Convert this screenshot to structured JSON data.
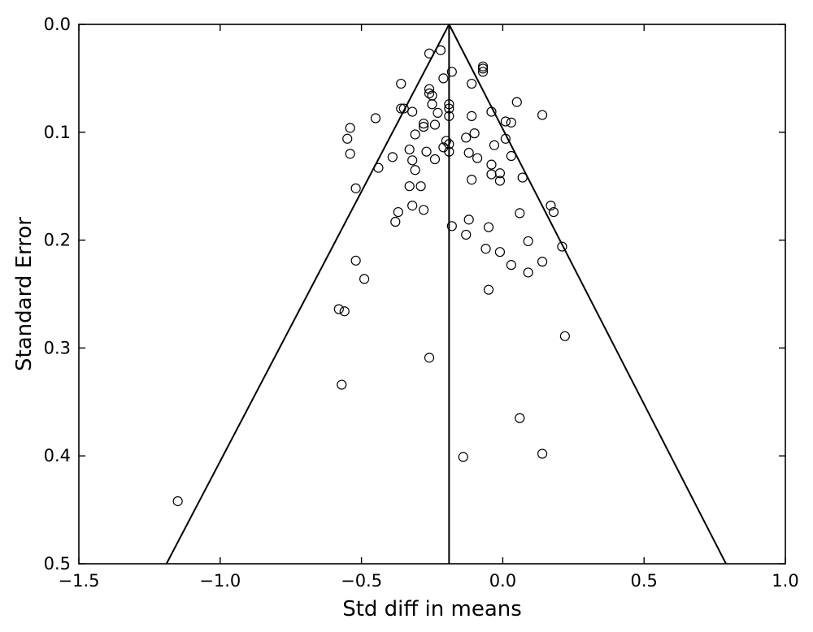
{
  "chart_data": {
    "type": "scatter",
    "subtype": "funnel-plot",
    "title": "",
    "xlabel": "Std diff in means",
    "ylabel": "Standard Error",
    "xlim": [
      -1.5,
      1.0
    ],
    "ylim": [
      0.0,
      0.5
    ],
    "y_inverted": true,
    "grid": false,
    "legend": "none",
    "x_ticks": [
      -1.5,
      -1.0,
      -0.5,
      0.0,
      0.5,
      1.0
    ],
    "x_tick_labels": [
      "−1.5",
      "−1.0",
      "−0.5",
      "0.0",
      "0.5",
      "1.0"
    ],
    "y_ticks": [
      0.0,
      0.1,
      0.2,
      0.3,
      0.4,
      0.5
    ],
    "y_tick_labels": [
      "0.0",
      "0.1",
      "0.2",
      "0.3",
      "0.4",
      "0.5"
    ],
    "funnel": {
      "center": -0.19,
      "apex_se": 0.0,
      "base_se": 0.5,
      "base_left": -1.19,
      "base_right": 0.79
    },
    "marker": {
      "shape": "open-circle",
      "color": "#000000"
    },
    "series": [
      {
        "points": [
          [
            -1.15,
            0.442
          ],
          [
            -0.57,
            0.334
          ],
          [
            -0.58,
            0.264
          ],
          [
            -0.56,
            0.266
          ],
          [
            -0.49,
            0.236
          ],
          [
            -0.52,
            0.219
          ],
          [
            -0.52,
            0.152
          ],
          [
            -0.55,
            0.106
          ],
          [
            -0.54,
            0.096
          ],
          [
            -0.54,
            0.12
          ],
          [
            -0.45,
            0.087
          ],
          [
            -0.44,
            0.133
          ],
          [
            -0.36,
            0.055
          ],
          [
            -0.36,
            0.078
          ],
          [
            -0.35,
            0.078
          ],
          [
            -0.32,
            0.081
          ],
          [
            -0.31,
            0.102
          ],
          [
            -0.39,
            0.123
          ],
          [
            -0.33,
            0.116
          ],
          [
            -0.32,
            0.126
          ],
          [
            -0.31,
            0.135
          ],
          [
            -0.33,
            0.15
          ],
          [
            -0.29,
            0.15
          ],
          [
            -0.37,
            0.174
          ],
          [
            -0.38,
            0.183
          ],
          [
            -0.32,
            0.168
          ],
          [
            -0.28,
            0.172
          ],
          [
            -0.26,
            0.309
          ],
          [
            -0.26,
            0.027
          ],
          [
            -0.22,
            0.024
          ],
          [
            -0.26,
            0.06
          ],
          [
            -0.26,
            0.064
          ],
          [
            -0.25,
            0.066
          ],
          [
            -0.25,
            0.074
          ],
          [
            -0.21,
            0.05
          ],
          [
            -0.18,
            0.044
          ],
          [
            -0.19,
            0.074
          ],
          [
            -0.19,
            0.078
          ],
          [
            -0.19,
            0.085
          ],
          [
            -0.23,
            0.082
          ],
          [
            -0.28,
            0.092
          ],
          [
            -0.28,
            0.095
          ],
          [
            -0.24,
            0.093
          ],
          [
            -0.2,
            0.108
          ],
          [
            -0.21,
            0.114
          ],
          [
            -0.19,
            0.111
          ],
          [
            -0.19,
            0.118
          ],
          [
            -0.27,
            0.118
          ],
          [
            -0.24,
            0.125
          ],
          [
            -0.18,
            0.187
          ],
          [
            -0.14,
            0.401
          ],
          [
            -0.13,
            0.105
          ],
          [
            -0.11,
            0.055
          ],
          [
            -0.11,
            0.085
          ],
          [
            -0.1,
            0.101
          ],
          [
            -0.12,
            0.119
          ],
          [
            -0.09,
            0.124
          ],
          [
            -0.11,
            0.144
          ],
          [
            -0.12,
            0.181
          ],
          [
            -0.13,
            0.195
          ],
          [
            -0.07,
            0.044
          ],
          [
            -0.07,
            0.039
          ],
          [
            -0.07,
            0.041
          ],
          [
            -0.04,
            0.081
          ],
          [
            -0.03,
            0.112
          ],
          [
            -0.04,
            0.13
          ],
          [
            -0.04,
            0.139
          ],
          [
            -0.01,
            0.138
          ],
          [
            -0.01,
            0.145
          ],
          [
            -0.06,
            0.208
          ],
          [
            -0.05,
            0.188
          ],
          [
            -0.01,
            0.211
          ],
          [
            -0.05,
            0.246
          ],
          [
            0.01,
            0.09
          ],
          [
            0.03,
            0.091
          ],
          [
            0.01,
            0.106
          ],
          [
            0.03,
            0.122
          ],
          [
            0.05,
            0.072
          ],
          [
            0.07,
            0.142
          ],
          [
            0.06,
            0.175
          ],
          [
            0.03,
            0.223
          ],
          [
            0.09,
            0.201
          ],
          [
            0.09,
            0.23
          ],
          [
            0.14,
            0.084
          ],
          [
            0.14,
            0.22
          ],
          [
            0.17,
            0.168
          ],
          [
            0.18,
            0.174
          ],
          [
            0.21,
            0.206
          ],
          [
            0.22,
            0.289
          ],
          [
            0.06,
            0.365
          ],
          [
            0.14,
            0.398
          ]
        ]
      }
    ]
  }
}
